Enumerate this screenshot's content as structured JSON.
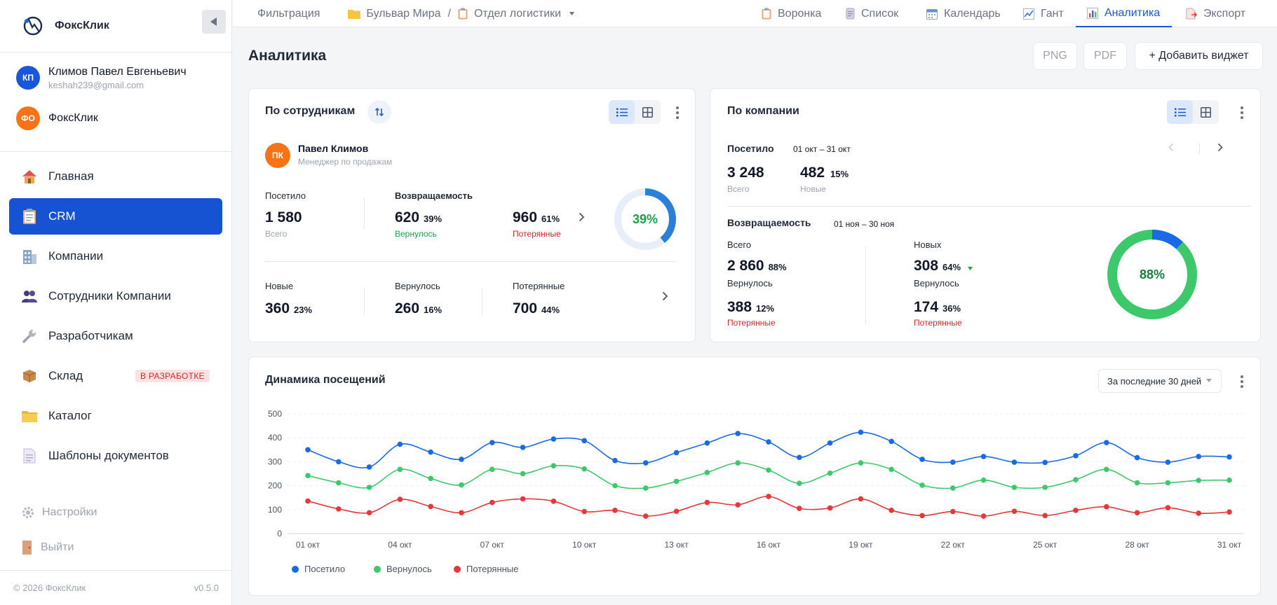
{
  "app": {
    "name": "ФоксКлик"
  },
  "sidebar": {
    "users": [
      {
        "initials": "КП",
        "name": "Климов Павел Евгеньевич",
        "email": "keshah239@gmail.com",
        "color": "#1a56db"
      },
      {
        "initials": "ФО",
        "name": "ФоксКлик",
        "color": "#f97316"
      }
    ],
    "nav": [
      {
        "label": "Главная",
        "icon": "home-icon"
      },
      {
        "label": "CRM",
        "icon": "clipboard-icon",
        "active": true
      },
      {
        "label": "Компании",
        "icon": "building-icon"
      },
      {
        "label": "Сотрудники Компании",
        "icon": "people-icon"
      },
      {
        "label": "Разработчикам",
        "icon": "wrench-icon"
      },
      {
        "label": "Склад",
        "icon": "package-icon",
        "badge": "В РАЗРАБОТКЕ"
      },
      {
        "label": "Каталог",
        "icon": "folder-icon"
      },
      {
        "label": "Шаблоны документов",
        "icon": "document-icon"
      }
    ],
    "settings": "Настройки",
    "logout": "Выйти",
    "footer": {
      "copyright": "© 2026 ФоксКлик",
      "version": "v0.5.0"
    }
  },
  "topbar": {
    "filter": "Фильтрация",
    "breadcrumb": [
      "Бульвар Мира",
      "Отдел логистики"
    ],
    "separator": "/",
    "views": [
      "Воронка",
      "Список",
      "Календарь",
      "Гант",
      "Аналитика",
      "Экспорт"
    ],
    "active_view": "Аналитика"
  },
  "page": {
    "title": "Аналитика",
    "buttons": {
      "png": "PNG",
      "pdf": "PDF",
      "add": "+ Добавить виджет"
    }
  },
  "employees_card": {
    "title": "По сотрудникам",
    "person": {
      "initials": "ПК",
      "name": "Павел Климов",
      "role": "Менеджер по продажам"
    },
    "row1": {
      "visited": {
        "label": "Посетило",
        "value": "1 580",
        "sub": "Всего"
      },
      "returnability": {
        "label": "Возвращаемость",
        "value": "620",
        "pct": "39%",
        "sub": "Вернулось"
      },
      "lost": {
        "value": "960",
        "pct": "61%",
        "sub": "Потерянные"
      },
      "donut": {
        "label": "39%",
        "value": 39
      }
    },
    "row2": {
      "new": {
        "label": "Новые",
        "value": "360",
        "pct": "23%"
      },
      "returned": {
        "label": "Вернулось",
        "value": "260",
        "pct": "16%"
      },
      "lost": {
        "label": "Потерянные",
        "value": "700",
        "pct": "44%"
      }
    }
  },
  "company_card": {
    "title": "По компании",
    "visited": {
      "label": "Посетило",
      "period": "01 окт – 31 окт",
      "total": "3 248",
      "total_sub": "Всего",
      "new": "482",
      "new_pct": "15%",
      "new_sub": "Новые"
    },
    "returnability": {
      "label": "Возвращаемость",
      "period": "01 ноя – 30 ноя",
      "all": {
        "label": "Всего",
        "value": "2 860",
        "pct": "88%",
        "sub": "Вернулось",
        "lost": "388",
        "lost_pct": "12%",
        "lost_sub": "Потерянные"
      },
      "new": {
        "label": "Новых",
        "value": "308",
        "pct": "64%",
        "sub": "Вернулось",
        "lost": "174",
        "lost_pct": "36%",
        "lost_sub": "Потерянные"
      }
    },
    "donut": {
      "label": "88%",
      "value": 88
    }
  },
  "dynamics_card": {
    "title": "Динамика посещений",
    "select": "За последние 30 дней"
  },
  "colors": {
    "blue": "#1a6ae8",
    "green": "#3cc86b",
    "red": "#e5383b",
    "accent": "#1653d3"
  },
  "chart_data": {
    "type": "line",
    "title": "Динамика посещений",
    "x": [
      "01 окт",
      "02 окт",
      "03 окт",
      "04 окт",
      "05 окт",
      "06 окт",
      "07 окт",
      "08 окт",
      "09 окт",
      "10 окт",
      "11 окт",
      "12 окт",
      "13 окт",
      "14 окт",
      "15 окт",
      "16 окт",
      "17 окт",
      "18 окт",
      "19 окт",
      "20 окт",
      "21 окт",
      "22 окт",
      "23 окт",
      "24 окт",
      "25 окт",
      "26 окт",
      "27 окт",
      "28 окт",
      "29 окт",
      "30 окт",
      "31 окт"
    ],
    "xticks": [
      "01 окт",
      "04 окт",
      "07 окт",
      "10 окт",
      "13 окт",
      "16 окт",
      "19 окт",
      "22 окт",
      "25 окт",
      "28 окт",
      "31 окт"
    ],
    "yticks": [
      0,
      100,
      200,
      300,
      400,
      500
    ],
    "ylim": [
      0,
      500
    ],
    "series": [
      {
        "name": "Посетило",
        "color": "#1a6ae8",
        "values": [
          350,
          300,
          278,
          373,
          340,
          310,
          380,
          360,
          395,
          388,
          305,
          295,
          338,
          378,
          418,
          383,
          318,
          378,
          423,
          385,
          310,
          298,
          322,
          298,
          297,
          325,
          380,
          317,
          298,
          322,
          320
        ]
      },
      {
        "name": "Вернулось",
        "color": "#3cc86b",
        "values": [
          242,
          212,
          193,
          268,
          230,
          203,
          268,
          250,
          283,
          270,
          200,
          190,
          218,
          255,
          295,
          265,
          210,
          252,
          295,
          268,
          202,
          190,
          223,
          193,
          193,
          225,
          268,
          212,
          212,
          222,
          223
        ]
      },
      {
        "name": "Потерянные",
        "color": "#e5383b",
        "values": [
          136,
          103,
          87,
          143,
          113,
          87,
          130,
          145,
          135,
          92,
          97,
          73,
          93,
          130,
          120,
          155,
          105,
          107,
          145,
          97,
          75,
          92,
          73,
          93,
          75,
          97,
          112,
          87,
          108,
          85,
          90
        ]
      }
    ]
  }
}
